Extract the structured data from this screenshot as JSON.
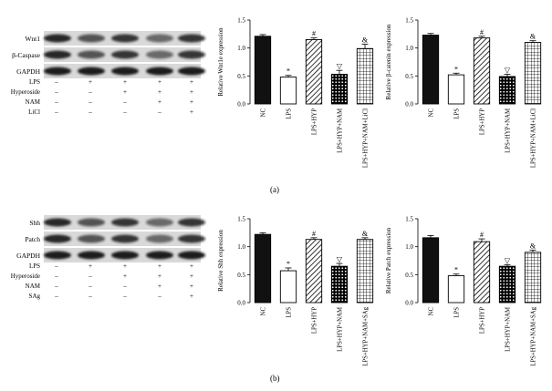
{
  "panels": [
    {
      "label": "(a)",
      "blot": {
        "band_labels": [
          "Wnt1",
          "β-Caspase",
          "GAPDH"
        ],
        "treatment_rows": [
          {
            "name": "LPS",
            "signs": [
              "–",
              "+",
              "+",
              "+",
              "+"
            ]
          },
          {
            "name": "Hyperoside",
            "signs": [
              "–",
              "–",
              "+",
              "+",
              "+"
            ]
          },
          {
            "name": "NAM",
            "signs": [
              "–",
              "–",
              "–",
              "+",
              "+"
            ]
          },
          {
            "name": "LiCl",
            "signs": [
              "–",
              "–",
              "–",
              "–",
              "+"
            ]
          }
        ]
      }
    },
    {
      "label": "(b)",
      "blot": {
        "band_labels": [
          "Shh",
          "Patch",
          "GAPDH"
        ],
        "treatment_rows": [
          {
            "name": "LPS",
            "signs": [
              "–",
              "+",
              "+",
              "+",
              "+"
            ]
          },
          {
            "name": "Hyperoside",
            "signs": [
              "–",
              "–",
              "+",
              "+",
              "+"
            ]
          },
          {
            "name": "NAM",
            "signs": [
              "–",
              "–",
              "–",
              "+",
              "+"
            ]
          },
          {
            "name": "SAg",
            "signs": [
              "–",
              "–",
              "–",
              "–",
              "+"
            ]
          }
        ]
      }
    }
  ],
  "chart_data": [
    {
      "type": "bar",
      "ylabel": "Relative Wnt1e expression",
      "ylim": [
        0,
        1.5
      ],
      "yticks": [
        "0.0",
        "0.5",
        "1.0",
        "1.5"
      ],
      "categories": [
        "NC",
        "LPS",
        "LPS+HYP",
        "LPS+HYP+NAM",
        "LPS+HYP+NAM+LiCl"
      ],
      "values": [
        1.21,
        0.48,
        1.15,
        0.53,
        0.99
      ],
      "errors": [
        0.03,
        0.03,
        0.03,
        0.07,
        0.08
      ],
      "markers": [
        "",
        "*",
        "#",
        "▽",
        "&"
      ],
      "fills": [
        "solid",
        "white",
        "diagonal",
        "dots",
        "grid"
      ]
    },
    {
      "type": "bar",
      "ylabel": "Relative β-catenin expression",
      "ylim": [
        0,
        1.5
      ],
      "yticks": [
        "0.0",
        "0.5",
        "1.0",
        "1.5"
      ],
      "categories": [
        "NC",
        "LPS",
        "LPS+HYP",
        "LPS+HYP+NAM",
        "LPS+HYP+NAM+LiCl"
      ],
      "values": [
        1.23,
        0.52,
        1.18,
        0.49,
        1.1
      ],
      "errors": [
        0.03,
        0.03,
        0.03,
        0.04,
        0.03
      ],
      "markers": [
        "",
        "*",
        "#",
        "▽",
        "&"
      ],
      "fills": [
        "solid",
        "white",
        "diagonal",
        "dots",
        "grid"
      ]
    },
    {
      "type": "bar",
      "ylabel": "Relative Shh expression",
      "ylim": [
        0,
        1.5
      ],
      "yticks": [
        "0.0",
        "0.5",
        "1.0",
        "1.5"
      ],
      "categories": [
        "NC",
        "LPS",
        "LPS+HYP",
        "LPS+HYP+NAM",
        "LPS+HYP+NAM+SAg"
      ],
      "values": [
        1.22,
        0.57,
        1.13,
        0.65,
        1.13
      ],
      "errors": [
        0.03,
        0.05,
        0.03,
        0.05,
        0.03
      ],
      "markers": [
        "",
        "*",
        "#",
        "▽",
        "&"
      ],
      "fills": [
        "solid",
        "white",
        "diagonal",
        "dots",
        "grid"
      ]
    },
    {
      "type": "bar",
      "ylabel": "Relative Patch expression",
      "ylim": [
        0,
        1.5
      ],
      "yticks": [
        "0.0",
        "0.5",
        "1.0",
        "1.5"
      ],
      "categories": [
        "NC",
        "LPS",
        "LPS+HYP",
        "LPS+HYP+NAM",
        "LPS+HYP+NAM+SAg"
      ],
      "values": [
        1.16,
        0.48,
        1.09,
        0.65,
        0.9
      ],
      "errors": [
        0.04,
        0.03,
        0.05,
        0.03,
        0.04
      ],
      "markers": [
        "",
        "*",
        "#",
        "▽",
        "&"
      ],
      "fills": [
        "solid",
        "white",
        "diagonal",
        "dots",
        "grid"
      ]
    }
  ]
}
